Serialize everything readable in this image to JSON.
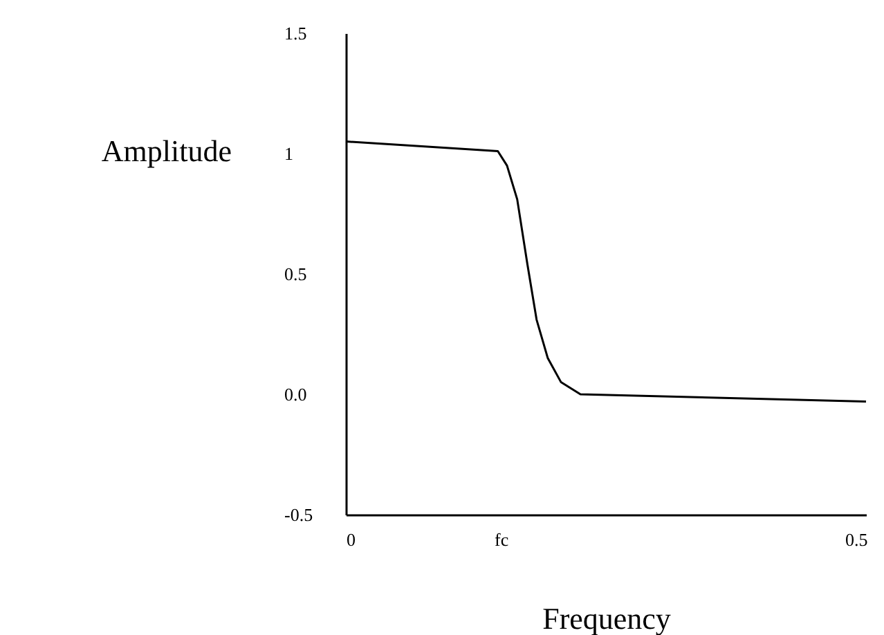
{
  "chart_data": {
    "type": "line",
    "xlabel": "Frequency",
    "ylabel": "Amplitude",
    "x": [
      0,
      0.149,
      0.158,
      0.168,
      0.178,
      0.187,
      0.198,
      0.211,
      0.23,
      0.51
    ],
    "series": [
      {
        "color": "#000000",
        "values": [
          1.05,
          1.01,
          0.95,
          0.81,
          0.54,
          0.31,
          0.15,
          0.05,
          0.0,
          -0.03
        ]
      }
    ],
    "xlim": [
      0,
      0.51
    ],
    "xticks": [
      0,
      {
        "value": 0.152,
        "label": "fc"
      },
      0.5
    ],
    "ylim": [
      -0.5,
      1.5
    ],
    "yticks": [
      -0.5,
      {
        "value": 0,
        "label": "0.0"
      },
      0.5,
      1,
      1.5
    ],
    "grid": false,
    "marker": "none",
    "line_style": "solid"
  }
}
